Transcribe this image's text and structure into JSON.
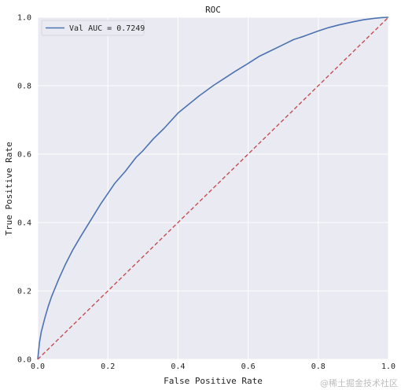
{
  "chart_data": {
    "type": "line",
    "title": "ROC",
    "xlabel": "False Positive Rate",
    "ylabel": "True Positive Rate",
    "xlim": [
      0,
      1
    ],
    "ylim": [
      0,
      1
    ],
    "xticks": [
      "0.0",
      "0.2",
      "0.4",
      "0.6",
      "0.8",
      "1.0"
    ],
    "yticks": [
      "0.0",
      "0.2",
      "0.4",
      "0.6",
      "0.8",
      "1.0"
    ],
    "grid": true,
    "legend_position": "top-left",
    "series": [
      {
        "name": "Val AUC = 0.7249",
        "color": "#4c72b0",
        "style": "solid",
        "x": [
          0,
          0.005,
          0.01,
          0.02,
          0.03,
          0.04,
          0.05,
          0.06,
          0.08,
          0.1,
          0.12,
          0.15,
          0.18,
          0.2,
          0.22,
          0.25,
          0.28,
          0.3,
          0.33,
          0.36,
          0.4,
          0.43,
          0.46,
          0.5,
          0.53,
          0.56,
          0.6,
          0.63,
          0.66,
          0.7,
          0.73,
          0.76,
          0.8,
          0.83,
          0.86,
          0.9,
          0.93,
          0.96,
          0.98,
          1.0
        ],
        "y": [
          0,
          0.05,
          0.08,
          0.12,
          0.155,
          0.185,
          0.21,
          0.235,
          0.28,
          0.32,
          0.355,
          0.405,
          0.455,
          0.485,
          0.515,
          0.55,
          0.59,
          0.61,
          0.645,
          0.675,
          0.72,
          0.745,
          0.77,
          0.8,
          0.82,
          0.84,
          0.865,
          0.885,
          0.9,
          0.92,
          0.935,
          0.945,
          0.96,
          0.97,
          0.978,
          0.987,
          0.993,
          0.997,
          0.999,
          1.0
        ]
      },
      {
        "name": "",
        "color": "#c44e52",
        "style": "dashed",
        "x": [
          0,
          1
        ],
        "y": [
          0,
          1
        ]
      }
    ]
  },
  "watermark": "@稀土掘金技术社区"
}
